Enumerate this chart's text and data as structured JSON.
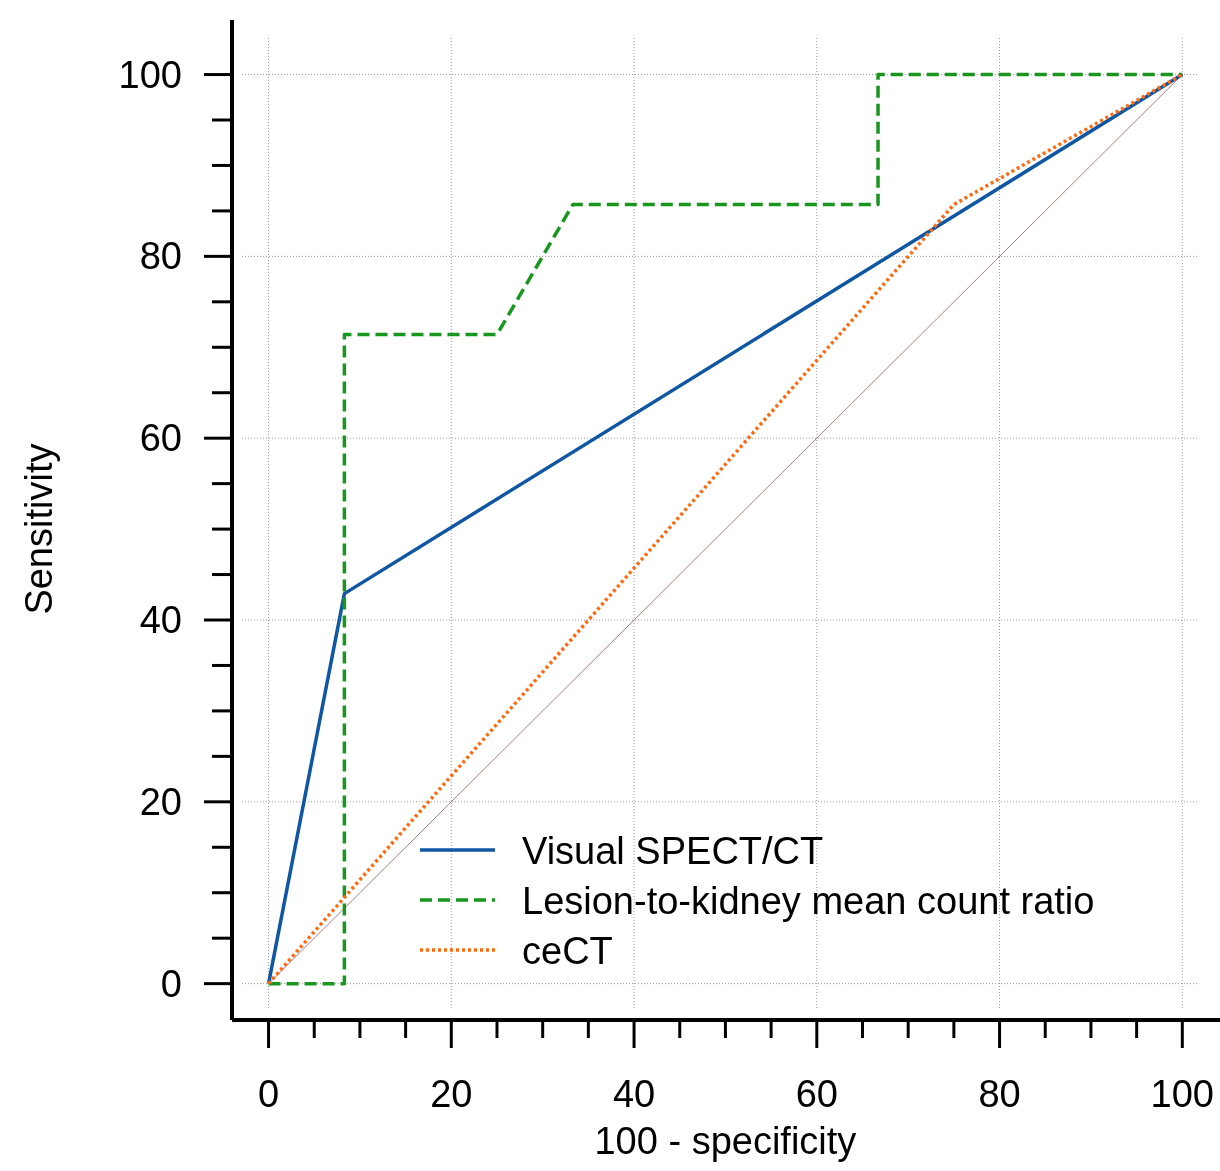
{
  "chart_data": {
    "type": "line",
    "xlabel": "100 - specificity",
    "ylabel": "Sensitivity",
    "xlim": [
      -4,
      105
    ],
    "ylim": [
      -4,
      106
    ],
    "xticks": [
      0,
      20,
      40,
      60,
      80,
      100
    ],
    "yticks": [
      0,
      20,
      40,
      60,
      80,
      100
    ],
    "grid": true,
    "legend": "bottom right",
    "series": [
      {
        "color": "#a05a5a",
        "line_style": "solid",
        "x": [
          0,
          100
        ],
        "values": [
          0,
          100
        ]
      },
      {
        "name": "Visual SPECT/CT",
        "color": "#0f56a3",
        "line_style": "solid",
        "x": [
          0,
          8.3,
          100
        ],
        "values": [
          0,
          42.9,
          100
        ]
      },
      {
        "name": "Lesion-to-kidney mean count ratio",
        "color": "#18961e",
        "line_style": "dashed",
        "x": [
          0,
          8.3,
          8.3,
          8.3,
          8.3,
          8.3,
          8.3,
          16.7,
          25,
          33.3,
          41.7,
          50,
          66.7,
          66.7,
          75,
          91.7,
          100
        ],
        "values": [
          0,
          0,
          14.3,
          28.6,
          42.9,
          57.1,
          71.4,
          71.4,
          71.4,
          85.7,
          85.7,
          85.7,
          85.7,
          100,
          100,
          100,
          100
        ]
      },
      {
        "name": "ceCT",
        "color": "#ff6a10",
        "line_style": "dotted",
        "x": [
          0,
          75,
          100
        ],
        "values": [
          0,
          85.7,
          100
        ]
      }
    ]
  }
}
